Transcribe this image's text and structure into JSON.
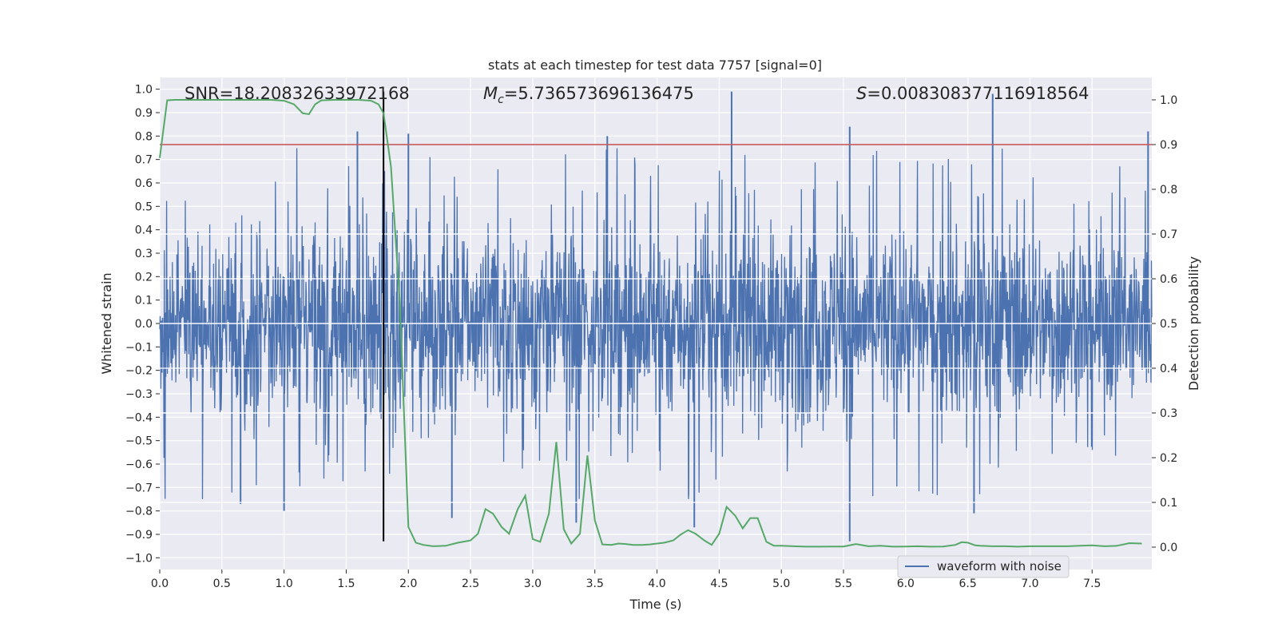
{
  "chart_data": {
    "type": "line",
    "title": "stats at each timestep for test data 7757 [signal=0]",
    "xlabel": "Time (s)",
    "ylabel_left": "Whitened strain",
    "ylabel_right": "Detection probability",
    "xlim": [
      0.0,
      7.98
    ],
    "ylim_left": [
      -1.05,
      1.05
    ],
    "ylim_right": [
      -0.05,
      1.05
    ],
    "x_ticks": [
      "0.0",
      "0.5",
      "1.0",
      "1.5",
      "2.0",
      "2.5",
      "3.0",
      "3.5",
      "4.0",
      "4.5",
      "5.0",
      "5.5",
      "6.0",
      "6.5",
      "7.0",
      "7.5"
    ],
    "y_ticks_left": [
      "1.0",
      "0.9",
      "0.8",
      "0.7",
      "0.6",
      "0.5",
      "0.4",
      "0.3",
      "0.2",
      "0.1",
      "0.0",
      "-0.1",
      "-0.2",
      "-0.3",
      "-0.4",
      "-0.5",
      "-0.6",
      "-0.7",
      "-0.8",
      "-0.9",
      "-1.0"
    ],
    "y_ticks_right": [
      "1.0",
      "0.9",
      "0.8",
      "0.7",
      "0.6",
      "0.5",
      "0.4",
      "0.3",
      "0.2",
      "0.1",
      "0.0"
    ],
    "annotations": {
      "snr": "SNR=18.20832633972168",
      "mc_symbol": "M",
      "mc_sub": "c",
      "mc_value": "=5.736573696136475",
      "s_symbol": "S",
      "s_value": "=0.008308377116918564"
    },
    "legend": {
      "label": "waveform with noise",
      "location": "lower-right"
    },
    "threshold": {
      "axis": "right",
      "value": 0.9,
      "color": "#c44e52"
    },
    "marker_line": {
      "x": 1.8,
      "y_range_left": [
        -0.93,
        0.99
      ],
      "color": "#000000"
    },
    "series": [
      {
        "name": "waveform with noise",
        "axis": "left",
        "color": "#4c72b0",
        "description": "whitened strain noise, envelope approx +/-0.45 with spikes up to ~0.99",
        "peaks": [
          {
            "x": 1.59,
            "value": 0.82
          },
          {
            "x": 2.0,
            "value": 0.81
          },
          {
            "x": 3.6,
            "value": 0.8
          },
          {
            "x": 4.6,
            "value": 0.99
          },
          {
            "x": 5.55,
            "value": 0.84
          },
          {
            "x": 6.7,
            "value": 0.98
          },
          {
            "x": 7.95,
            "value": 0.82
          }
        ],
        "troughs": [
          {
            "x": 0.65,
            "value": -0.77
          },
          {
            "x": 1.0,
            "value": -0.8
          },
          {
            "x": 2.35,
            "value": -0.83
          },
          {
            "x": 3.35,
            "value": -0.85
          },
          {
            "x": 4.3,
            "value": -0.87
          },
          {
            "x": 5.55,
            "value": -0.93
          },
          {
            "x": 6.55,
            "value": -0.81
          }
        ]
      },
      {
        "name": "detection probability",
        "axis": "right",
        "color": "#55a868",
        "x": [
          0.0,
          0.06,
          0.12,
          0.2,
          0.3,
          0.4,
          0.5,
          0.6,
          0.7,
          0.8,
          0.9,
          1.0,
          1.08,
          1.15,
          1.2,
          1.25,
          1.3,
          1.4,
          1.5,
          1.6,
          1.7,
          1.76,
          1.8,
          1.86,
          1.93,
          2.0,
          2.06,
          2.12,
          2.2,
          2.3,
          2.4,
          2.5,
          2.56,
          2.62,
          2.68,
          2.75,
          2.81,
          2.88,
          2.94,
          3.0,
          3.06,
          3.13,
          3.19,
          3.25,
          3.31,
          3.38,
          3.44,
          3.5,
          3.56,
          3.63,
          3.69,
          3.75,
          3.81,
          3.88,
          3.94,
          4.0,
          4.06,
          4.13,
          4.19,
          4.25,
          4.31,
          4.38,
          4.44,
          4.5,
          4.56,
          4.63,
          4.69,
          4.75,
          4.81,
          4.88,
          4.94,
          5.0,
          5.1,
          5.2,
          5.3,
          5.4,
          5.5,
          5.6,
          5.7,
          5.8,
          5.9,
          6.0,
          6.1,
          6.2,
          6.3,
          6.4,
          6.45,
          6.5,
          6.56,
          6.6,
          6.7,
          6.8,
          6.9,
          7.0,
          7.1,
          7.2,
          7.3,
          7.4,
          7.5,
          7.6,
          7.7,
          7.8,
          7.9
        ],
        "values": [
          0.87,
          0.999,
          1.0,
          1.0,
          1.0,
          1.0,
          1.0,
          1.0,
          1.0,
          1.0,
          1.0,
          0.998,
          0.99,
          0.97,
          0.968,
          0.99,
          0.999,
          1.0,
          1.0,
          1.0,
          0.998,
          0.99,
          0.97,
          0.85,
          0.55,
          0.045,
          0.01,
          0.005,
          0.002,
          0.003,
          0.01,
          0.015,
          0.03,
          0.085,
          0.075,
          0.045,
          0.03,
          0.085,
          0.115,
          0.018,
          0.012,
          0.075,
          0.235,
          0.04,
          0.008,
          0.03,
          0.205,
          0.06,
          0.006,
          0.005,
          0.008,
          0.007,
          0.005,
          0.005,
          0.006,
          0.008,
          0.01,
          0.015,
          0.028,
          0.038,
          0.03,
          0.015,
          0.005,
          0.03,
          0.09,
          0.07,
          0.042,
          0.065,
          0.065,
          0.012,
          0.003,
          0.003,
          0.002,
          0.001,
          0.001,
          0.0015,
          0.0015,
          0.007,
          0.002,
          0.003,
          0.001,
          0.0015,
          0.002,
          0.001,
          0.0015,
          0.005,
          0.011,
          0.01,
          0.004,
          0.003,
          0.002,
          0.002,
          0.001,
          0.002,
          0.002,
          0.002,
          0.002,
          0.003,
          0.004,
          0.002,
          0.003,
          0.009,
          0.008
        ]
      }
    ]
  }
}
